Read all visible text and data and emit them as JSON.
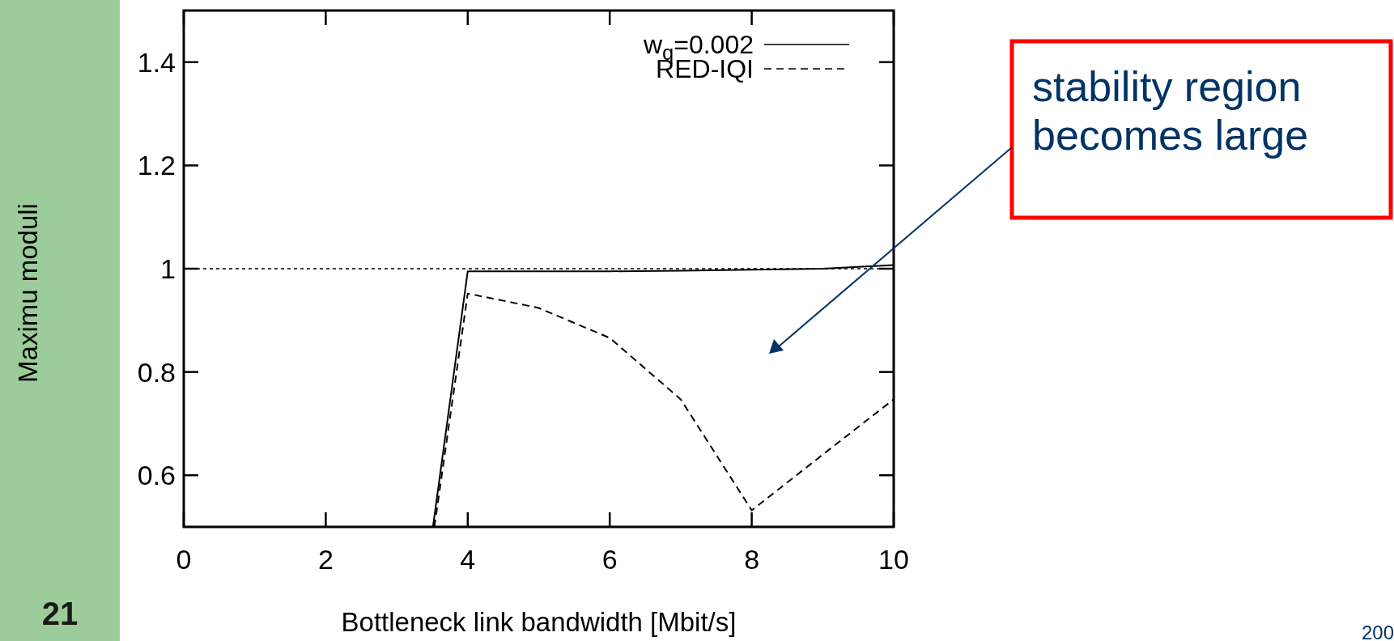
{
  "chart_data": {
    "type": "line",
    "xlabel": "Bottleneck link bandwidth [Mbit/s]",
    "ylabel": "Maximu moduli",
    "xlim": [
      0,
      10
    ],
    "xticks": [
      0,
      2,
      4,
      6,
      8,
      10
    ],
    "ylim": [
      0.5,
      1.5
    ],
    "yticks": [
      0.6,
      0.8,
      1,
      1.2,
      1.4
    ],
    "series": [
      {
        "name": "w$_{q}$=0.002",
        "color": "#000000",
        "line_style": "solid",
        "x": [
          3.51,
          4,
          5,
          6,
          7,
          8,
          9,
          10
        ],
        "values": [
          0.5,
          0.995,
          0.995,
          0.995,
          0.996,
          0.998,
          1.0,
          1.007
        ]
      },
      {
        "name": "RED-IQI",
        "color": "#000000",
        "line_style": "dashed",
        "x": [
          3.53,
          4,
          5,
          6,
          7,
          8,
          9,
          10
        ],
        "values": [
          0.5,
          0.952,
          0.924,
          0.866,
          0.747,
          0.532,
          0.64,
          0.747
        ]
      }
    ],
    "ref_lines": [
      {
        "axis": "y",
        "value": 1,
        "color": "#000000",
        "line_style": "dotted"
      }
    ],
    "legend": "top right",
    "annotations": [
      "stability region becomes large",
      "21",
      "200"
    ]
  }
}
